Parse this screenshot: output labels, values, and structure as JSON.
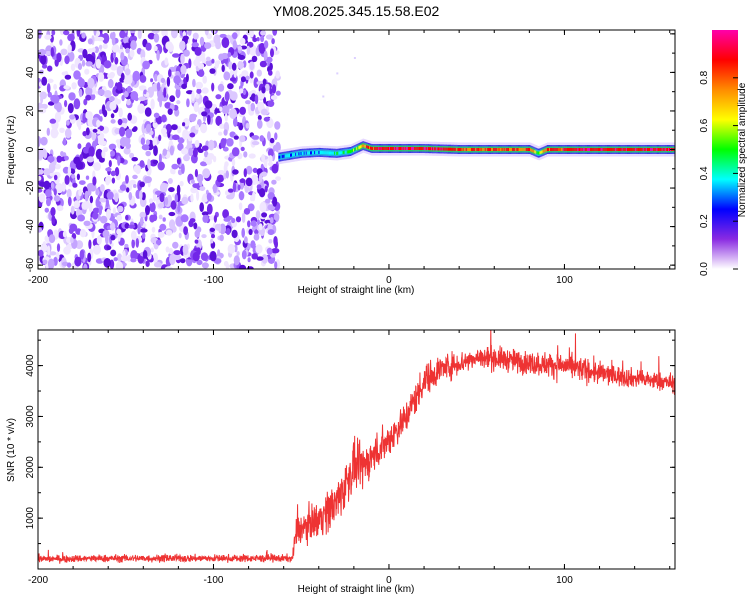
{
  "title": "YM08.2025.345.15.58.E02",
  "chart_data": [
    {
      "type": "heatmap",
      "xlabel": "Height of straight line (km)",
      "ylabel": "Frequency (Hz)",
      "xlim": [
        -200,
        163
      ],
      "ylim": [
        -62,
        62
      ],
      "xticks": [
        -200,
        -100,
        0,
        100
      ],
      "yticks": [
        -60,
        -40,
        -20,
        0,
        20,
        40,
        60
      ],
      "regions": {
        "noise_x_range": [
          -200,
          -63
        ],
        "empty_x_range": [
          -63,
          163
        ],
        "signal_start_x": -63,
        "signal_center_frequency": 0
      },
      "signal_band": {
        "x": [
          -63,
          -60,
          -50,
          -40,
          -30,
          -22,
          -15,
          -10,
          0,
          20,
          40,
          60,
          80,
          85,
          90,
          110,
          130,
          150,
          163
        ],
        "frequency": [
          -4,
          -3.5,
          -2,
          -1.5,
          -2,
          -1,
          2,
          0.5,
          0.5,
          0.5,
          0,
          0,
          0,
          -2,
          0,
          0,
          0,
          0,
          0
        ],
        "amplitude": [
          0.25,
          0.3,
          0.35,
          0.35,
          0.4,
          0.5,
          0.7,
          0.85,
          0.9,
          0.9,
          0.85,
          0.8,
          0.8,
          0.5,
          0.85,
          0.9,
          0.9,
          0.9,
          0.9
        ]
      },
      "grid": false,
      "colorbar": {
        "label": "Normalized spectral amplitude",
        "range": [
          0,
          1
        ],
        "ticks": [
          "0.0",
          "0.2",
          "0.4",
          "0.6",
          "0.8"
        ],
        "colors": [
          "#ffffff",
          "#8a2be2",
          "#0000ff",
          "#00ffff",
          "#00ff00",
          "#ffff00",
          "#ff8c00",
          "#ff0000",
          "#ff00aa"
        ]
      }
    },
    {
      "type": "line",
      "xlabel": "Height of straight line (km)",
      "ylabel": "SNR (10 * v/v)",
      "xlim": [
        -200,
        163
      ],
      "ylim": [
        0,
        4700
      ],
      "xticks": [
        -200,
        -100,
        0,
        100
      ],
      "yticks": [
        1000,
        2000,
        3000,
        4000
      ],
      "color": "#ee3333",
      "series": [
        {
          "x": [
            -200,
            -150,
            -100,
            -70,
            -55,
            -53,
            -50,
            -40,
            -30,
            -20,
            -15,
            -10,
            0,
            10,
            20,
            30,
            40,
            50,
            60,
            80,
            100,
            120,
            140,
            163
          ],
          "y": [
            200,
            210,
            210,
            210,
            210,
            700,
            800,
            1000,
            1300,
            2000,
            2000,
            2200,
            2550,
            3000,
            3700,
            3950,
            4050,
            4150,
            4150,
            4050,
            4000,
            3850,
            3750,
            3650
          ],
          "noise": [
            80,
            80,
            80,
            80,
            80,
            350,
            300,
            400,
            500,
            500,
            450,
            400,
            350,
            350,
            350,
            300,
            250,
            250,
            250,
            250,
            280,
            250,
            200,
            200
          ]
        }
      ],
      "grid": false
    }
  ]
}
